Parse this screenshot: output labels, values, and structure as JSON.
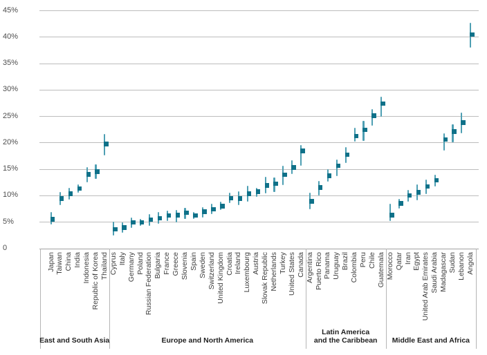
{
  "chart": {
    "colors": {
      "range_bar": "#4e9fb3",
      "point": "#0f7189",
      "gridline": "#bcbcbc",
      "axis_line": "#a1a1a1",
      "separator": "#b5b5b5",
      "tick_text": "#4d4d4d",
      "label_text": "#3d3d3d",
      "group_text": "#1f1f1f"
    }
  },
  "chart_data": {
    "type": "scatter",
    "title": "",
    "xlabel": "",
    "ylabel": "",
    "y_format": "percent",
    "ylim": [
      0,
      45
    ],
    "grid": true,
    "legend_position": "none",
    "marker_note": "dark teal square = point estimate; light teal vertical bar = low-high uncertainty range (values in %)",
    "yticks": [
      {
        "value": 0,
        "label": "0"
      },
      {
        "value": 5,
        "label": "5%"
      },
      {
        "value": 10,
        "label": "10%"
      },
      {
        "value": 15,
        "label": "15%"
      },
      {
        "value": 20,
        "label": "20%"
      },
      {
        "value": 25,
        "label": "25%"
      },
      {
        "value": 30,
        "label": "30%"
      },
      {
        "value": 35,
        "label": "35%"
      },
      {
        "value": 40,
        "label": "40%"
      },
      {
        "value": 45,
        "label": "45%"
      }
    ],
    "groups": [
      {
        "label": "East and South Asia",
        "countries": [
          {
            "name": "Japan",
            "value": 5.5,
            "low": 4.5,
            "high": 6.9
          },
          {
            "name": "Taiwan",
            "value": 9.4,
            "low": 8.1,
            "high": 10.7
          },
          {
            "name": "China",
            "value": 10.3,
            "low": 9.2,
            "high": 11.5
          },
          {
            "name": "India",
            "value": 11.3,
            "low": 10.5,
            "high": 12.1
          },
          {
            "name": "Indonesia",
            "value": 14.0,
            "low": 12.5,
            "high": 15.3
          },
          {
            "name": "Republic of Korea",
            "value": 14.5,
            "low": 13.1,
            "high": 15.9
          },
          {
            "name": "Thailand",
            "value": 19.7,
            "low": 17.6,
            "high": 21.6
          }
        ]
      },
      {
        "label": "Europe and North America",
        "countries": [
          {
            "name": "Cyprus",
            "value": 3.6,
            "low": 2.4,
            "high": 5.1
          },
          {
            "name": "Italy",
            "value": 3.9,
            "low": 2.9,
            "high": 4.9
          },
          {
            "name": "Germany",
            "value": 4.9,
            "low": 3.8,
            "high": 5.8
          },
          {
            "name": "Poland",
            "value": 4.9,
            "low": 4.2,
            "high": 5.5
          },
          {
            "name": "Russian Federation",
            "value": 5.4,
            "low": 4.2,
            "high": 6.5
          },
          {
            "name": "Bulgaria",
            "value": 5.7,
            "low": 4.6,
            "high": 6.8
          },
          {
            "name": "France",
            "value": 6.2,
            "low": 5.2,
            "high": 7.1
          },
          {
            "name": "Greece",
            "value": 6.3,
            "low": 4.9,
            "high": 7.3
          },
          {
            "name": "Slovenia",
            "value": 6.7,
            "low": 5.5,
            "high": 7.6
          },
          {
            "name": "Spain",
            "value": 6.2,
            "low": 5.5,
            "high": 6.8
          },
          {
            "name": "Sweden",
            "value": 6.9,
            "low": 5.8,
            "high": 7.8
          },
          {
            "name": "Switzerland",
            "value": 7.4,
            "low": 6.4,
            "high": 8.4
          },
          {
            "name": "United Kingdom",
            "value": 8.0,
            "low": 7.2,
            "high": 8.8
          },
          {
            "name": "Croatia",
            "value": 9.5,
            "low": 8.5,
            "high": 10.5
          },
          {
            "name": "Ireland",
            "value": 9.4,
            "low": 8.2,
            "high": 10.8
          },
          {
            "name": "Luxembourg",
            "value": 10.3,
            "low": 8.8,
            "high": 11.8
          },
          {
            "name": "Austria",
            "value": 10.7,
            "low": 9.8,
            "high": 11.5
          },
          {
            "name": "Slovak Republic",
            "value": 11.9,
            "low": 10.4,
            "high": 13.5
          },
          {
            "name": "Netherlands",
            "value": 12.2,
            "low": 10.6,
            "high": 13.4
          },
          {
            "name": "Turkey",
            "value": 13.9,
            "low": 12.0,
            "high": 15.6
          },
          {
            "name": "United States",
            "value": 15.3,
            "low": 14.0,
            "high": 16.6
          },
          {
            "name": "Canada",
            "value": 18.4,
            "low": 15.6,
            "high": 19.5
          }
        ]
      },
      {
        "label": "Latin America\nand the Caribbean",
        "countries": [
          {
            "name": "Argentina",
            "value": 8.9,
            "low": 7.4,
            "high": 10.5
          },
          {
            "name": "Puerto Rico",
            "value": 11.5,
            "low": 10.0,
            "high": 12.8
          },
          {
            "name": "Panama",
            "value": 13.7,
            "low": 12.6,
            "high": 14.9
          },
          {
            "name": "Uruguay",
            "value": 15.6,
            "low": 13.7,
            "high": 16.8
          },
          {
            "name": "Brazil",
            "value": 17.7,
            "low": 16.1,
            "high": 19.1
          },
          {
            "name": "Colombia",
            "value": 21.2,
            "low": 20.2,
            "high": 22.8
          },
          {
            "name": "Peru",
            "value": 22.4,
            "low": 20.3,
            "high": 24.1
          },
          {
            "name": "Chile",
            "value": 25.1,
            "low": 23.2,
            "high": 26.3
          },
          {
            "name": "Guatemala",
            "value": 27.4,
            "low": 24.9,
            "high": 28.7
          }
        ]
      },
      {
        "label": "Middle East and Africa",
        "countries": [
          {
            "name": "Morocco",
            "value": 6.3,
            "low": 5.1,
            "high": 8.4
          },
          {
            "name": "Qatar",
            "value": 8.5,
            "low": 7.5,
            "high": 9.3
          },
          {
            "name": "Iran",
            "value": 10.0,
            "low": 8.8,
            "high": 11.1
          },
          {
            "name": "Egypt",
            "value": 10.6,
            "low": 9.1,
            "high": 12.1
          },
          {
            "name": "United Arab Emirates",
            "value": 11.7,
            "low": 10.2,
            "high": 13.0
          },
          {
            "name": "Saudi Arabia",
            "value": 12.9,
            "low": 11.7,
            "high": 13.9
          },
          {
            "name": "Madagascar",
            "value": 20.6,
            "low": 18.5,
            "high": 21.7
          },
          {
            "name": "Sudan",
            "value": 22.1,
            "low": 20.1,
            "high": 23.5
          },
          {
            "name": "Lebanon",
            "value": 23.8,
            "low": 21.8,
            "high": 25.7
          },
          {
            "name": "Angola",
            "value": 40.4,
            "low": 38.0,
            "high": 42.6
          }
        ]
      }
    ]
  }
}
